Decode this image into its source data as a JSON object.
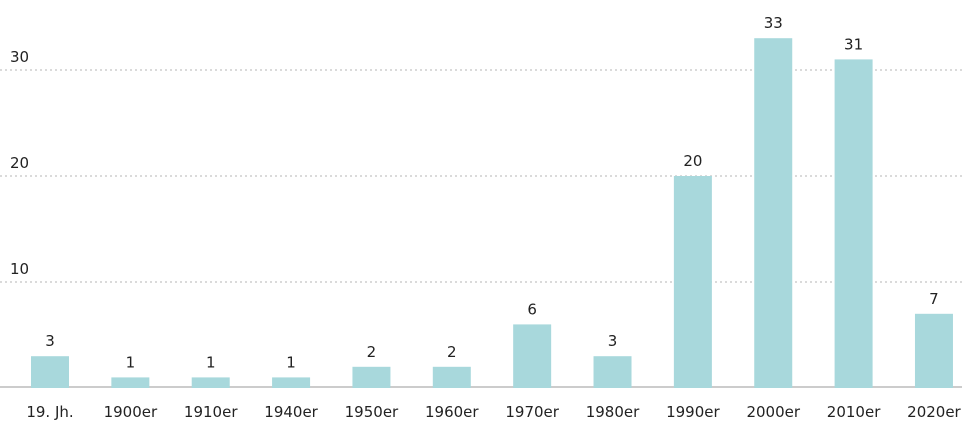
{
  "chart_data": {
    "type": "bar",
    "categories": [
      "19. Jh.",
      "1900er",
      "1910er",
      "1940er",
      "1950er",
      "1960er",
      "1970er",
      "1980er",
      "1990er",
      "2000er",
      "2010er",
      "2020er"
    ],
    "values": [
      3,
      1,
      1,
      1,
      2,
      2,
      6,
      3,
      20,
      33,
      31,
      7
    ],
    "color": "#a8d8dc",
    "ylim": [
      0,
      35
    ],
    "yticks": [
      10,
      20,
      30
    ],
    "grid": true
  }
}
